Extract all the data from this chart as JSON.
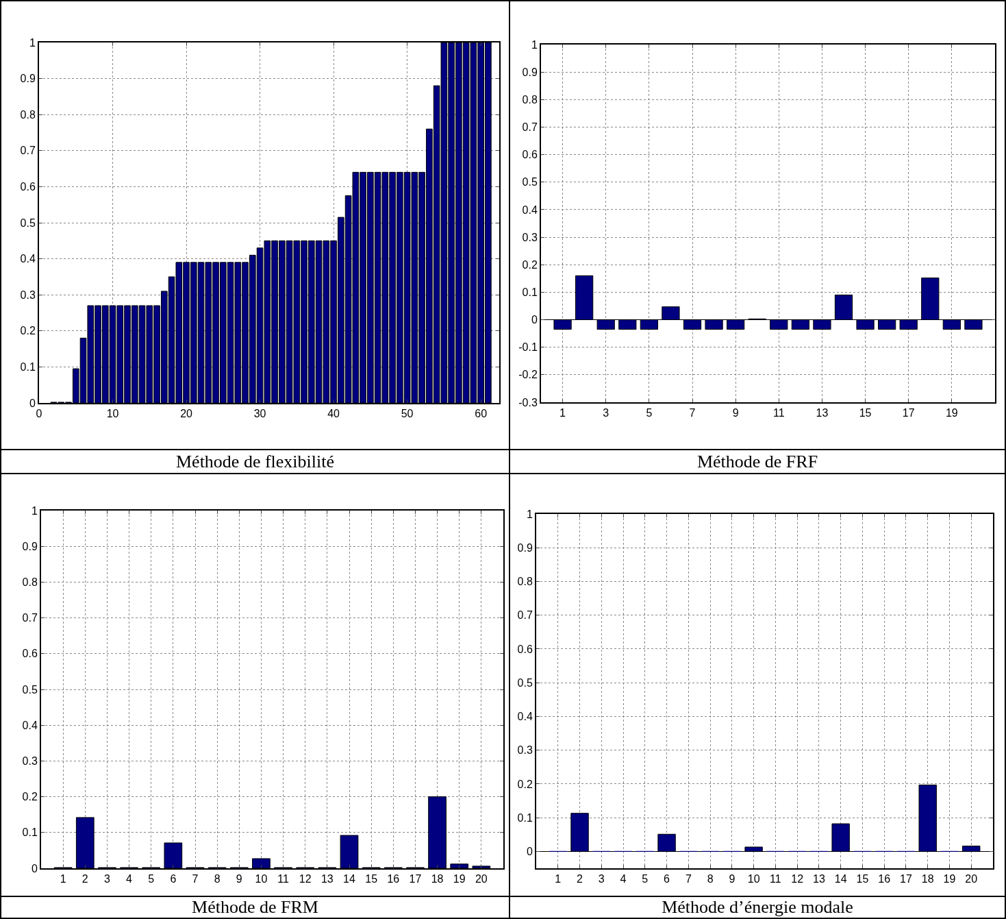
{
  "chart_data": [
    {
      "type": "bar",
      "title": "Méthode de flexibilité",
      "x": [
        2,
        3,
        4,
        5,
        6,
        7,
        8,
        9,
        10,
        11,
        12,
        13,
        14,
        15,
        16,
        17,
        18,
        19,
        20,
        21,
        22,
        23,
        24,
        25,
        26,
        27,
        28,
        29,
        30,
        31,
        32,
        33,
        34,
        35,
        36,
        37,
        38,
        39,
        40,
        41,
        42,
        43,
        44,
        45,
        46,
        47,
        48,
        49,
        50,
        51,
        52,
        53,
        54,
        55,
        56,
        57,
        58,
        59,
        60,
        61
      ],
      "values": [
        0.002,
        0.002,
        0.002,
        0.095,
        0.18,
        0.27,
        0.27,
        0.27,
        0.27,
        0.27,
        0.27,
        0.27,
        0.27,
        0.27,
        0.27,
        0.31,
        0.35,
        0.39,
        0.39,
        0.39,
        0.39,
        0.39,
        0.39,
        0.39,
        0.39,
        0.39,
        0.39,
        0.41,
        0.43,
        0.45,
        0.45,
        0.45,
        0.45,
        0.45,
        0.45,
        0.45,
        0.45,
        0.45,
        0.45,
        0.515,
        0.575,
        0.64,
        0.64,
        0.64,
        0.64,
        0.64,
        0.64,
        0.64,
        0.64,
        0.64,
        0.64,
        0.76,
        0.88,
        1,
        1,
        1,
        1,
        1,
        1,
        1
      ],
      "color": "#000080",
      "xlim": [
        0,
        62.5
      ],
      "xticks": [
        0,
        10,
        20,
        30,
        40,
        50,
        60
      ],
      "ylim": [
        0,
        1
      ],
      "yticks": [
        0,
        0.1,
        0.2,
        0.3,
        0.4,
        0.5,
        0.6,
        0.7,
        0.8,
        0.9,
        1
      ],
      "grid": true,
      "legend": false
    },
    {
      "type": "bar",
      "title": "Méthode de FRF",
      "x": [
        1,
        2,
        3,
        4,
        5,
        6,
        7,
        8,
        9,
        10,
        11,
        12,
        13,
        14,
        15,
        16,
        17,
        18,
        19,
        20
      ],
      "values": [
        -0.035,
        0.16,
        -0.035,
        -0.035,
        -0.035,
        0.047,
        -0.035,
        -0.035,
        -0.035,
        0.003,
        -0.035,
        -0.035,
        -0.035,
        0.09,
        -0.035,
        -0.035,
        -0.035,
        0.152,
        -0.035,
        -0.035
      ],
      "color": "#000080",
      "xlim": [
        0,
        21
      ],
      "xticks": [
        1,
        3,
        5,
        7,
        9,
        11,
        13,
        15,
        17,
        19
      ],
      "ylim": [
        -0.3,
        1
      ],
      "yticks": [
        -0.3,
        -0.2,
        -0.1,
        0,
        0.1,
        0.2,
        0.3,
        0.4,
        0.5,
        0.6,
        0.7,
        0.8,
        0.9,
        1
      ],
      "grid": true,
      "legend": false
    },
    {
      "type": "bar",
      "title": "Méthode de FRM",
      "x": [
        1,
        2,
        3,
        4,
        5,
        6,
        7,
        8,
        9,
        10,
        11,
        12,
        13,
        14,
        15,
        16,
        17,
        18,
        19,
        20
      ],
      "values": [
        0.002,
        0.142,
        0.002,
        0.002,
        0.002,
        0.071,
        0.002,
        0.002,
        0.002,
        0.027,
        0.002,
        0.002,
        0.002,
        0.092,
        0.002,
        0.002,
        0.002,
        0.2,
        0.012,
        0.006
      ],
      "color": "#000080",
      "xlim": [
        0,
        21
      ],
      "xticks": [
        1,
        2,
        3,
        4,
        5,
        6,
        7,
        8,
        9,
        10,
        11,
        12,
        13,
        14,
        15,
        16,
        17,
        18,
        19,
        20
      ],
      "ylim": [
        0,
        1
      ],
      "yticks": [
        0,
        0.1,
        0.2,
        0.3,
        0.4,
        0.5,
        0.6,
        0.7,
        0.8,
        0.9,
        1
      ],
      "grid": true,
      "legend": false
    },
    {
      "type": "bar",
      "title": "Méthode d’énergie modale",
      "x": [
        1,
        2,
        3,
        4,
        5,
        6,
        7,
        8,
        9,
        10,
        11,
        12,
        13,
        14,
        15,
        16,
        17,
        18,
        19,
        20
      ],
      "values": [
        0,
        0.113,
        0,
        0,
        0,
        0.051,
        0,
        0,
        0,
        0.013,
        0,
        0,
        0,
        0.082,
        0,
        0,
        0,
        0.197,
        0,
        0.016
      ],
      "color": "#000080",
      "xlim": [
        0,
        21
      ],
      "xticks": [
        1,
        2,
        3,
        4,
        5,
        6,
        7,
        8,
        9,
        10,
        11,
        12,
        13,
        14,
        15,
        16,
        17,
        18,
        19,
        20
      ],
      "ylim": [
        -0.05,
        1
      ],
      "yticks": [
        0,
        0.1,
        0.2,
        0.3,
        0.4,
        0.5,
        0.6,
        0.7,
        0.8,
        0.9,
        1
      ],
      "grid": true,
      "legend": false
    }
  ]
}
